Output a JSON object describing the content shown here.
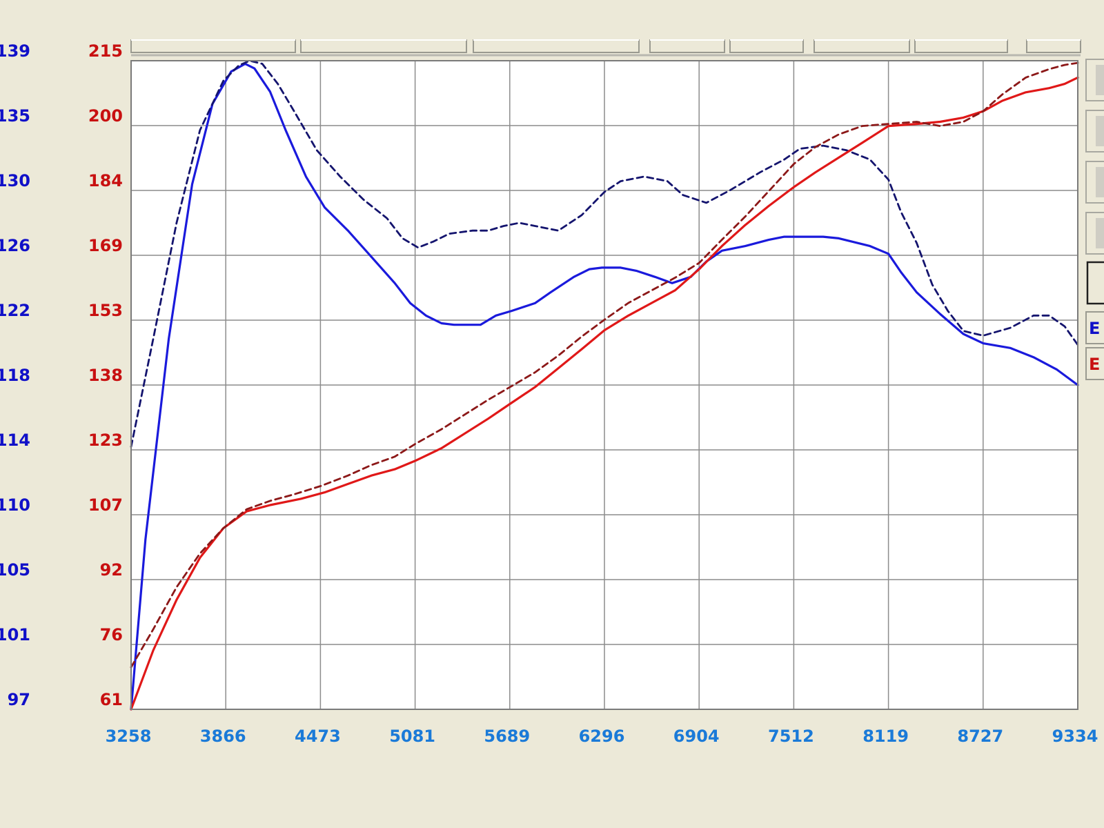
{
  "colors": {
    "background": "#ece9d8",
    "plot_background": "#ffffff",
    "grid": "#8c8c8c",
    "left_axis_text": "#1010c8",
    "right_axis_text": "#c81010",
    "bottom_axis_text": "#1a7ad8",
    "series_blue_solid": "#1a1adc",
    "series_blue_dashed": "#14146e",
    "series_red_solid": "#e01818",
    "series_red_dashed": "#8c1818"
  },
  "side_buttons": [
    {
      "label": "E",
      "color": "#1010c8"
    },
    {
      "label": "E",
      "color": "#c81010"
    }
  ],
  "chart_data": {
    "type": "line",
    "x_ticks": [
      "3258",
      "3866",
      "4473",
      "5081",
      "5689",
      "6296",
      "6904",
      "7512",
      "8119",
      "8727",
      "9334"
    ],
    "xlim": [
      3258,
      9334
    ],
    "y_left_ticks": [
      "139",
      "135",
      "130",
      "126",
      "122",
      "118",
      "114",
      "110",
      "105",
      "101",
      "97"
    ],
    "y_left_lim": [
      97,
      139
    ],
    "y_right_ticks": [
      "215",
      "200",
      "184",
      "169",
      "153",
      "138",
      "123",
      "107",
      "92",
      "76",
      "61"
    ],
    "y_right_lim": [
      61,
      215
    ],
    "grid": true,
    "series": [
      {
        "axis": "left",
        "style": "solid",
        "color": "#1a1adc",
        "x": [
          3258,
          3350,
          3500,
          3650,
          3780,
          3900,
          3990,
          4050,
          4150,
          4250,
          4380,
          4500,
          4650,
          4800,
          4950,
          5050,
          5150,
          5250,
          5330,
          5420,
          5500,
          5600,
          5700,
          5850,
          5950,
          6100,
          6200,
          6280,
          6400,
          6500,
          6620,
          6730,
          6850,
          6950,
          7050,
          7200,
          7350,
          7450,
          7500,
          7600,
          7700,
          7800,
          8000,
          8119,
          8200,
          8300,
          8450,
          8600,
          8727,
          8900,
          9050,
          9200,
          9334
        ],
        "y": [
          97,
          108,
          121,
          131,
          136.2,
          138.3,
          138.8,
          138.5,
          137.0,
          134.5,
          131.5,
          129.5,
          128.0,
          126.3,
          124.6,
          123.3,
          122.5,
          122.0,
          121.9,
          121.9,
          121.9,
          122.5,
          122.8,
          123.3,
          124.0,
          125.0,
          125.5,
          125.6,
          125.6,
          125.4,
          125.0,
          124.6,
          125.0,
          126.0,
          126.7,
          127.0,
          127.4,
          127.6,
          127.6,
          127.6,
          127.6,
          127.5,
          127.0,
          126.5,
          125.3,
          124.0,
          122.6,
          121.3,
          120.7,
          120.4,
          119.8,
          119.0,
          118.0
        ]
      },
      {
        "axis": "left",
        "style": "dashed",
        "color": "#14146e",
        "x": [
          3258,
          3400,
          3550,
          3700,
          3850,
          3950,
          4020,
          4100,
          4200,
          4300,
          4450,
          4600,
          4750,
          4900,
          5000,
          5100,
          5200,
          5300,
          5450,
          5550,
          5650,
          5750,
          5850,
          6000,
          6150,
          6296,
          6400,
          6550,
          6700,
          6800,
          6950,
          7100,
          7300,
          7450,
          7550,
          7700,
          7850,
          8000,
          8119,
          8200,
          8300,
          8400,
          8500,
          8600,
          8727,
          8900,
          9050,
          9150,
          9250,
          9334
        ],
        "y": [
          114,
          121,
          128.5,
          134.5,
          137.7,
          138.7,
          139.0,
          138.8,
          137.5,
          135.8,
          133.2,
          131.5,
          130.0,
          128.8,
          127.5,
          126.9,
          127.3,
          127.8,
          128.0,
          128.0,
          128.3,
          128.5,
          128.3,
          128.0,
          129.0,
          130.5,
          131.2,
          131.5,
          131.2,
          130.3,
          129.8,
          130.6,
          131.8,
          132.6,
          133.3,
          133.5,
          133.2,
          132.6,
          131.3,
          129.2,
          127.2,
          124.5,
          122.8,
          121.5,
          121.2,
          121.7,
          122.5,
          122.5,
          121.8,
          120.6
        ]
      },
      {
        "axis": "right",
        "style": "solid",
        "color": "#e01818",
        "x": [
          3258,
          3400,
          3550,
          3700,
          3850,
          4000,
          4150,
          4350,
          4500,
          4650,
          4800,
          4950,
          5081,
          5250,
          5400,
          5550,
          5689,
          5850,
          6000,
          6150,
          6296,
          6450,
          6600,
          6750,
          6904,
          7050,
          7200,
          7350,
          7512,
          7650,
          7800,
          7950,
          8119,
          8300,
          8450,
          8600,
          8727,
          8850,
          9000,
          9150,
          9250,
          9334
        ],
        "y": [
          61,
          75,
          87,
          97,
          104,
          108,
          109.5,
          111,
          112.5,
          114.5,
          116.5,
          118,
          120,
          123,
          126.5,
          130,
          133.5,
          137.5,
          142,
          146.5,
          151,
          154.5,
          157.5,
          160.5,
          165.5,
          171,
          176,
          180.5,
          185,
          188.5,
          192,
          195.5,
          199.5,
          200,
          200.5,
          201.5,
          203,
          205.5,
          207.5,
          208.5,
          209.5,
          211
        ]
      },
      {
        "axis": "right",
        "style": "dashed",
        "color": "#8c1818",
        "x": [
          3258,
          3400,
          3550,
          3700,
          3850,
          4000,
          4150,
          4300,
          4473,
          4650,
          4800,
          4950,
          5081,
          5250,
          5400,
          5550,
          5689,
          5850,
          6000,
          6150,
          6296,
          6450,
          6600,
          6750,
          6904,
          7050,
          7200,
          7350,
          7512,
          7650,
          7800,
          7950,
          8119,
          8300,
          8450,
          8600,
          8727,
          8850,
          9000,
          9150,
          9250,
          9334
        ],
        "y": [
          71,
          80,
          90,
          98,
          104,
          108.5,
          110.5,
          112,
          114,
          116.5,
          119,
          121,
          124,
          127.5,
          131,
          134.5,
          137.5,
          141,
          145,
          149.5,
          153.5,
          157.5,
          160.5,
          163.5,
          167,
          172.5,
          178,
          184,
          190.5,
          194.5,
          197.5,
          199.5,
          200,
          200.5,
          199.5,
          200.5,
          203,
          207,
          211,
          213,
          214,
          214.5
        ]
      }
    ]
  }
}
